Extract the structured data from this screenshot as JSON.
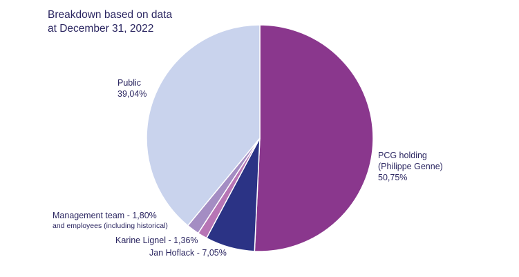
{
  "note": {
    "line1": "Breakdown based on data",
    "line2": "at December 31, 2022"
  },
  "chart_data": {
    "type": "pie",
    "title": "",
    "start_angle_deg": 0,
    "direction": "clockwise",
    "slices": [
      {
        "label_lines": [
          "PCG holding",
          "(Philippe Genne)"
        ],
        "value_text": "50,75%",
        "value": 50.75,
        "color": "#8a378d"
      },
      {
        "label_lines": [
          "Jan Hoflack"
        ],
        "value_text": "7,05%",
        "value": 7.05,
        "color": "#2b3385",
        "label_inline": "Jan Hoflack - 7,05%"
      },
      {
        "label_lines": [
          "Karine Lignel"
        ],
        "value_text": "1,36%",
        "value": 1.36,
        "color": "#b775b5",
        "label_inline": "Karine Lignel - 1,36%"
      },
      {
        "label_lines": [
          "Management team - 1,80%",
          "and employees (including historical)"
        ],
        "value_text": "1,80%",
        "value": 1.8,
        "color": "#a48dc3"
      },
      {
        "label_lines": [
          "Public"
        ],
        "value_text": "39,04%",
        "value": 39.04,
        "color": "#c9d3ed"
      }
    ]
  }
}
